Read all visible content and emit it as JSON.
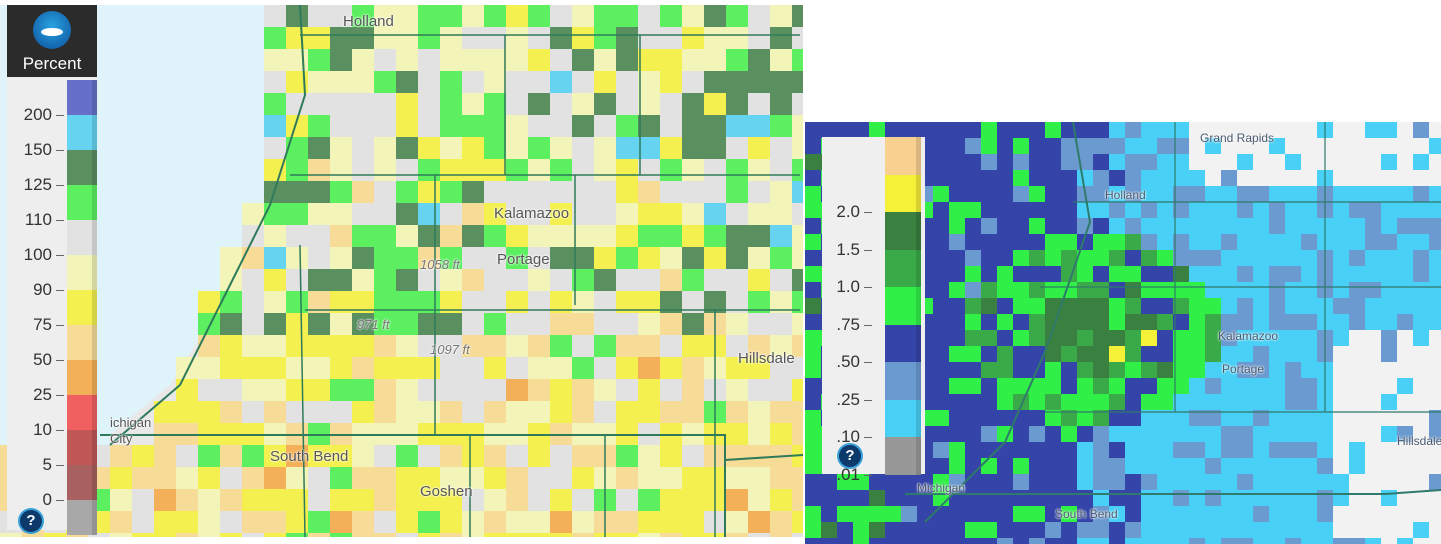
{
  "left_map": {
    "legend": {
      "title": "Percent",
      "help": "?",
      "items": [
        {
          "label": "200",
          "color": "#6670c8"
        },
        {
          "label": "150",
          "color": "#66d3f0"
        },
        {
          "label": "125",
          "color": "#5a9060"
        },
        {
          "label": "110",
          "color": "#5cf060"
        },
        {
          "label": "100",
          "color": "#e2e2e2"
        },
        {
          "label": "90",
          "color": "#f2f4b8"
        },
        {
          "label": "75",
          "color": "#f3f050"
        },
        {
          "label": "50",
          "color": "#f7dc98"
        },
        {
          "label": "25",
          "color": "#f4b058"
        },
        {
          "label": "10",
          "color": "#f06060"
        },
        {
          "label": "5",
          "color": "#c05858"
        },
        {
          "label": "0",
          "color": "#a86060"
        },
        {
          "label": "",
          "color": "#a8a8a8"
        }
      ]
    },
    "places": [
      {
        "name": "Holland"
      },
      {
        "name": "Kalamazoo"
      },
      {
        "name": "Portage"
      },
      {
        "name": "1058 ft"
      },
      {
        "name": "971 ft"
      },
      {
        "name": "1097 ft"
      },
      {
        "name": "Hillsdale"
      },
      {
        "name": "ichigan"
      },
      {
        "name": "City"
      },
      {
        "name": "South Bend"
      },
      {
        "name": "Goshen"
      }
    ]
  },
  "right_map": {
    "legend": {
      "help": "?",
      "items": [
        {
          "label": "",
          "color": "#f8d090"
        },
        {
          "label": "2.0",
          "color": "#f5f038"
        },
        {
          "label": "1.5",
          "color": "#3a8040"
        },
        {
          "label": "1.0",
          "color": "#3aaa48"
        },
        {
          "label": ".75",
          "color": "#30f048"
        },
        {
          "label": ".50",
          "color": "#3444a8"
        },
        {
          "label": ".25",
          "color": "#6a9ad0"
        },
        {
          "label": ".10",
          "color": "#48d0f6"
        },
        {
          "label": ".01",
          "color": "#989898"
        }
      ]
    },
    "places": [
      {
        "name": "Grand Rapids"
      },
      {
        "name": "Holland"
      },
      {
        "name": "Kalamazoo"
      },
      {
        "name": "Portage"
      },
      {
        "name": "Hillsdale"
      },
      {
        "name": "South Bend"
      },
      {
        "name": "Michigan"
      }
    ]
  }
}
